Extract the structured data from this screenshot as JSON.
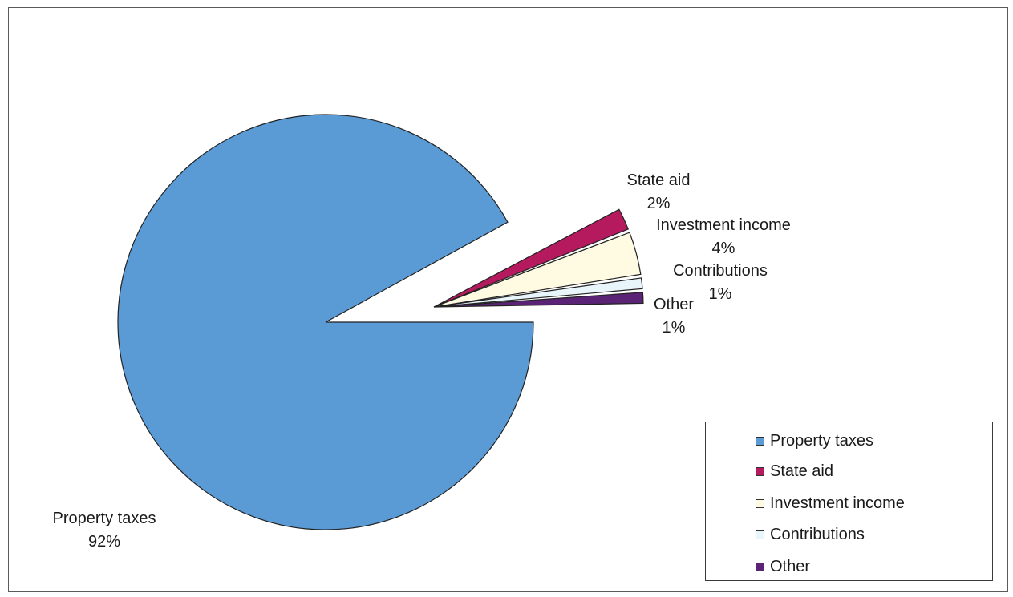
{
  "chart_data": {
    "type": "pie",
    "slices": [
      {
        "label": "Property taxes",
        "value": 92,
        "value_label": "92%",
        "color": "#5b9bd5"
      },
      {
        "label": "State aid",
        "value": 2,
        "value_label": "2%",
        "color": "#b5195e"
      },
      {
        "label": "Investment income",
        "value": 4,
        "value_label": "4%",
        "color": "#fffbe3"
      },
      {
        "label": "Contributions",
        "value": 1,
        "value_label": "1%",
        "color": "#e8f5fb"
      },
      {
        "label": "Other",
        "value": 1,
        "value_label": "1%",
        "color": "#5b2375"
      }
    ],
    "exploded": [
      "State aid",
      "Investment income",
      "Contributions",
      "Other"
    ],
    "legend": {
      "position": "bottom-right",
      "entries": [
        "Property taxes",
        "State aid",
        "Investment income",
        "Contributions",
        "Other"
      ]
    }
  }
}
